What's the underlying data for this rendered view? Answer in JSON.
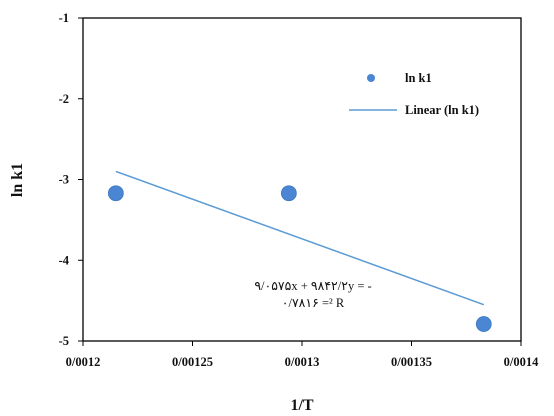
{
  "chart_data": {
    "type": "scatter",
    "xlabel": "1/T",
    "ylabel": "ln k1",
    "xlim": [
      0.0012,
      0.0014
    ],
    "ylim": [
      -5,
      -1
    ],
    "x_ticks": [
      0.0012,
      0.00125,
      0.0013,
      0.00135,
      0.0014
    ],
    "x_tick_labels": [
      "0/0012",
      "0/00125",
      "0/0013",
      "0/00135",
      "0/0014"
    ],
    "y_ticks": [
      -1,
      -2,
      -3,
      -4,
      -5
    ],
    "y_tick_labels": [
      "-1",
      "-2",
      "-3",
      "-4",
      "-5"
    ],
    "grid": false,
    "legend_position": "top-right",
    "series": [
      {
        "name": "ln k1",
        "type": "scatter",
        "color": "#4a86d4",
        "points": [
          {
            "x": 0.001215,
            "y": -3.17
          },
          {
            "x": 0.001294,
            "y": -3.17
          },
          {
            "x": 0.001383,
            "y": -4.79
          }
        ]
      },
      {
        "name": "Linear (ln k1)",
        "type": "line",
        "color": "#5b9bd5",
        "points": [
          {
            "x": 0.001215,
            "y": -2.9
          },
          {
            "x": 0.001383,
            "y": -4.55
          }
        ]
      }
    ],
    "annotations": {
      "equation": "۹/۰۵۷۵x + ۹۸۴۲/۲y = -",
      "r_squared": "۰/۷۸۱۶ =² R"
    }
  }
}
